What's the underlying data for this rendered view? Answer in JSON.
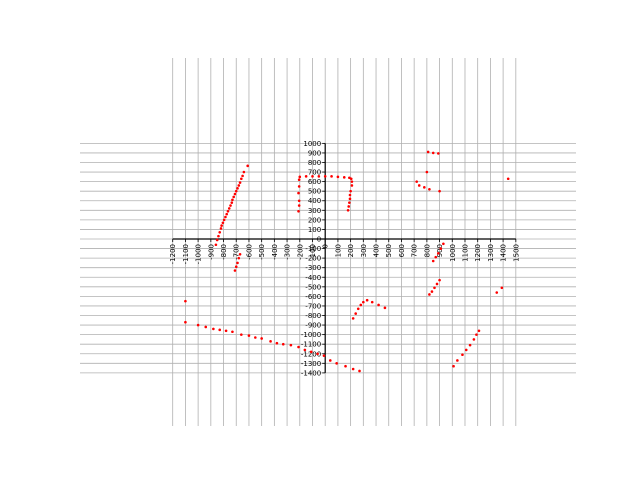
{
  "chart_data": {
    "type": "scatter",
    "title": "",
    "xlabel": "",
    "ylabel": "",
    "xlim": [
      -1200,
      1500
    ],
    "ylim": [
      -1400,
      1000
    ],
    "grid": true,
    "legend": "none",
    "x_ticks": [
      -1200,
      -1100,
      -1000,
      -900,
      -800,
      -700,
      -600,
      -500,
      -400,
      -300,
      -200,
      -100,
      0,
      100,
      200,
      300,
      400,
      500,
      600,
      700,
      800,
      900,
      1000,
      1100,
      1200,
      1300,
      1400,
      1500
    ],
    "y_ticks": [
      1000,
      900,
      800,
      700,
      600,
      500,
      400,
      300,
      200,
      100,
      0,
      -100,
      -200,
      -300,
      -400,
      -500,
      -600,
      -700,
      -800,
      -900,
      -1000,
      -1100,
      -1200,
      -1300,
      -1400
    ],
    "colors": {
      "points": "#ff0000",
      "grid": "#b0b0b0",
      "axis": "#000000"
    },
    "series": [
      {
        "points": [
          [
            -610,
            765
          ],
          [
            -640,
            700
          ],
          [
            -650,
            660
          ],
          [
            -660,
            630
          ],
          [
            -670,
            590
          ],
          [
            -680,
            560
          ],
          [
            -690,
            530
          ],
          [
            -700,
            500
          ],
          [
            -710,
            470
          ],
          [
            -720,
            440
          ],
          [
            -730,
            410
          ],
          [
            -735,
            380
          ],
          [
            -745,
            350
          ],
          [
            -755,
            320
          ],
          [
            -765,
            290
          ],
          [
            -775,
            260
          ],
          [
            -785,
            230
          ],
          [
            -795,
            200
          ],
          [
            -805,
            170
          ],
          [
            -815,
            140
          ],
          [
            -820,
            110
          ],
          [
            -830,
            70
          ],
          [
            -840,
            30
          ],
          [
            -850,
            -10
          ],
          [
            -860,
            -60
          ],
          [
            -670,
            -160
          ],
          [
            -680,
            -200
          ],
          [
            -690,
            -250
          ],
          [
            -700,
            -290
          ],
          [
            -710,
            -330
          ],
          [
            -1100,
            -650
          ],
          [
            -1100,
            -870
          ],
          [
            -1000,
            -900
          ],
          [
            -940,
            -920
          ],
          [
            -880,
            -940
          ],
          [
            -830,
            -950
          ],
          [
            -780,
            -960
          ],
          [
            -730,
            -970
          ],
          [
            -660,
            -1000
          ],
          [
            -600,
            -1010
          ],
          [
            -550,
            -1030
          ],
          [
            -500,
            -1040
          ],
          [
            -430,
            -1070
          ],
          [
            -380,
            -1090
          ],
          [
            -330,
            -1100
          ],
          [
            -270,
            -1110
          ],
          [
            -210,
            -1130
          ],
          [
            -160,
            -1160
          ],
          [
            -110,
            -1180
          ],
          [
            -60,
            -1200
          ],
          [
            -10,
            -1220
          ],
          [
            40,
            -1270
          ],
          [
            90,
            -1300
          ],
          [
            160,
            -1330
          ],
          [
            220,
            -1360
          ],
          [
            270,
            -1380
          ],
          [
            -200,
            650
          ],
          [
            -150,
            655
          ],
          [
            -100,
            655
          ],
          [
            -50,
            655
          ],
          [
            0,
            655
          ],
          [
            50,
            655
          ],
          [
            100,
            650
          ],
          [
            150,
            645
          ],
          [
            190,
            640
          ],
          [
            205,
            630
          ],
          [
            210,
            600
          ],
          [
            210,
            560
          ],
          [
            200,
            500
          ],
          [
            195,
            460
          ],
          [
            195,
            420
          ],
          [
            190,
            380
          ],
          [
            185,
            340
          ],
          [
            180,
            300
          ],
          [
            -205,
            620
          ],
          [
            -205,
            550
          ],
          [
            -210,
            480
          ],
          [
            -205,
            400
          ],
          [
            -205,
            350
          ],
          [
            -210,
            290
          ],
          [
            720,
            600
          ],
          [
            740,
            560
          ],
          [
            780,
            540
          ],
          [
            820,
            520
          ],
          [
            900,
            500
          ],
          [
            800,
            700
          ],
          [
            810,
            910
          ],
          [
            850,
            900
          ],
          [
            890,
            895
          ],
          [
            930,
            -50
          ],
          [
            910,
            -100
          ],
          [
            890,
            -150
          ],
          [
            870,
            -190
          ],
          [
            850,
            -230
          ],
          [
            900,
            -430
          ],
          [
            880,
            -470
          ],
          [
            860,
            -510
          ],
          [
            840,
            -550
          ],
          [
            820,
            -580
          ],
          [
            220,
            -830
          ],
          [
            240,
            -780
          ],
          [
            260,
            -730
          ],
          [
            280,
            -690
          ],
          [
            300,
            -660
          ],
          [
            330,
            -640
          ],
          [
            370,
            -660
          ],
          [
            420,
            -690
          ],
          [
            470,
            -720
          ],
          [
            1010,
            -1330
          ],
          [
            1040,
            -1270
          ],
          [
            1080,
            -1210
          ],
          [
            1110,
            -1160
          ],
          [
            1140,
            -1110
          ],
          [
            1170,
            -1050
          ],
          [
            1190,
            -1000
          ],
          [
            1210,
            -960
          ],
          [
            1350,
            -560
          ],
          [
            1390,
            -510
          ],
          [
            1440,
            630
          ]
        ]
      }
    ]
  }
}
